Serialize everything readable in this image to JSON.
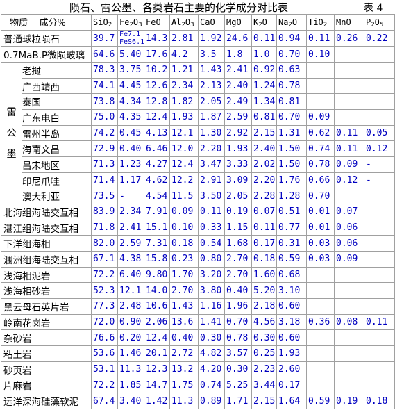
{
  "title": "陨石、雷公墨、各类岩石主要的化学成分对比表",
  "table_no": "表 4",
  "header": {
    "corner_left": "物质",
    "corner_right": "成分%",
    "columns": [
      {
        "base": "SiO",
        "sub": "2",
        "tail": ""
      },
      {
        "base": "Fe",
        "sub": "2",
        "tail": "O",
        "sub2": "3"
      },
      {
        "base": "FeO",
        "sub": "",
        "tail": ""
      },
      {
        "base": "Al",
        "sub": "2",
        "tail": "O",
        "sub2": "3"
      },
      {
        "base": "CaO",
        "sub": "",
        "tail": ""
      },
      {
        "base": "MgO",
        "sub": "",
        "tail": ""
      },
      {
        "base": "K",
        "sub": "2",
        "tail": "O"
      },
      {
        "base": "Na",
        "sub": "2",
        "tail": "O"
      },
      {
        "base": "TiO",
        "sub": "2",
        "tail": ""
      },
      {
        "base": "MnO",
        "sub": "",
        "tail": ""
      },
      {
        "base": "P",
        "sub": "2",
        "tail": "O",
        "sub2": "5"
      }
    ]
  },
  "meteorites": [
    {
      "name": "普通球粒陨石",
      "values": [
        "39.7",
        "",
        "14.3",
        "2.81",
        "1.92",
        "24.6",
        "0.11",
        "0.94",
        "0.11",
        "0.26",
        "0.22"
      ],
      "fe_split": [
        "Fe7.1",
        "FeS6.1"
      ]
    },
    {
      "name": "0.7MaB.P微陨玻璃",
      "values": [
        "64.6",
        "5.40",
        "17.6",
        "4.2",
        "3.5",
        "1.8",
        "1.0",
        "0.70",
        "0.10",
        "",
        ""
      ]
    }
  ],
  "leigongmo": {
    "group_chars": [
      "雷",
      "公",
      "墨"
    ],
    "rows": [
      {
        "name": "老挝",
        "values": [
          "78.3",
          "3.75",
          "10.2",
          "1.21",
          "1.43",
          "2.41",
          "0.92",
          "0.63",
          "",
          "",
          ""
        ]
      },
      {
        "name": "广西靖西",
        "values": [
          "74.1",
          "4.45",
          "12.6",
          "2.34",
          "2.13",
          "2.40",
          "1.24",
          "0.78",
          "",
          "",
          ""
        ]
      },
      {
        "name": "泰国",
        "values": [
          "73.8",
          "4.34",
          "12.8",
          "1.82",
          "2.05",
          "2.49",
          "1.34",
          "0.81",
          "",
          "",
          ""
        ]
      },
      {
        "name": "广东电白",
        "values": [
          "75.0",
          "4.35",
          "12.4",
          "1.93",
          "1.87",
          "2.59",
          "0.81",
          "0.70",
          "0.09",
          "",
          ""
        ]
      },
      {
        "name": "雷州半岛",
        "values": [
          "74.2",
          "0.45",
          "4.13",
          "12.1",
          "1.30",
          "2.92",
          "2.15",
          "1.31",
          "0.62",
          "0.11",
          "0.05"
        ]
      },
      {
        "name": "海南文昌",
        "values": [
          "72.9",
          "0.40",
          "6.46",
          "12.0",
          "2.20",
          "1.93",
          "2.40",
          "1.50",
          "0.74",
          "0.11",
          "0.12"
        ]
      },
      {
        "name": "吕宋地区",
        "values": [
          "71.3",
          "1.23",
          "4.27",
          "12.4",
          "3.47",
          "3.33",
          "2.02",
          "1.50",
          "0.78",
          "0.09",
          "-"
        ]
      },
      {
        "name": "印尼爪哇",
        "values": [
          "71.4",
          "1.17",
          "4.62",
          "12.2",
          "2.91",
          "3.09",
          "2.20",
          "1.76",
          "0.66",
          "0.12",
          "-"
        ]
      },
      {
        "name": "澳大利亚",
        "values": [
          "73.5",
          "-",
          "4.54",
          "11.5",
          "3.50",
          "2.05",
          "2.28",
          "1.28",
          "0.70",
          "",
          ""
        ]
      }
    ]
  },
  "rocks": [
    {
      "name": "北海组海陆交互相",
      "values": [
        "83.9",
        "2.34",
        "7.91",
        "0.09",
        "0.11",
        "0.19",
        "0.07",
        "0.51",
        "0.01",
        "0.07",
        ""
      ]
    },
    {
      "name": "湛江组海陆交互相",
      "values": [
        "71.8",
        "2.41",
        "15.1",
        "0.10",
        "0.33",
        "1.15",
        "0.11",
        "0.77",
        "0.01",
        "0.06",
        ""
      ]
    },
    {
      "name": "下洋组海相",
      "values": [
        "82.0",
        "2.59",
        "7.31",
        "0.18",
        "0.54",
        "1.68",
        "0.17",
        "0.31",
        "0.03",
        "0.06",
        ""
      ]
    },
    {
      "name": "涠洲组海陆交互相",
      "values": [
        "67.1",
        "4.38",
        "15.8",
        "0.23",
        "0.80",
        "2.70",
        "0.18",
        "0.59",
        "0.03",
        "0.09",
        ""
      ]
    },
    {
      "name": "浅海相泥岩",
      "values": [
        "72.2",
        "6.40",
        "9.80",
        "1.70",
        "3.20",
        "2.70",
        "1.60",
        "0.68",
        "",
        "",
        ""
      ]
    },
    {
      "name": "浅海相砂岩",
      "values": [
        "52.3",
        "12.1",
        "14.0",
        "2.70",
        "3.80",
        "0.40",
        "5.20",
        "3.10",
        "",
        "",
        ""
      ]
    },
    {
      "name": "黑云母石英片岩",
      "values": [
        "77.3",
        "2.48",
        "10.6",
        "1.43",
        "1.16",
        "1.96",
        "2.18",
        "0.60",
        "",
        "",
        ""
      ]
    },
    {
      "name": "岭南花岗岩",
      "values": [
        "72.0",
        "0.90",
        "2.06",
        "13.6",
        "1.41",
        "0.70",
        "4.56",
        "3.18",
        "0.36",
        "0.08",
        "0.11"
      ]
    },
    {
      "name": "杂砂岩",
      "values": [
        "76.6",
        "0.20",
        "12.4",
        "0.40",
        "0.30",
        "0.78",
        "0.30",
        "0.60",
        "",
        "",
        ""
      ]
    },
    {
      "name": "粘土岩",
      "values": [
        "53.6",
        "1.46",
        "20.1",
        "2.72",
        "4.82",
        "3.57",
        "0.25",
        "1.93",
        "",
        "",
        ""
      ]
    },
    {
      "name": "砂页岩",
      "values": [
        "53.1",
        "11.3",
        "12.3",
        "13.2",
        "4.20",
        "0.30",
        "2.23",
        "2.60",
        "",
        "",
        ""
      ]
    },
    {
      "name": "片麻岩",
      "values": [
        "72.2",
        "1.85",
        "14.7",
        "1.75",
        "0.74",
        "5.25",
        "3.44",
        "0.17",
        "",
        "",
        ""
      ]
    },
    {
      "name": "远洋深海硅藻软泥",
      "values": [
        "67.4",
        "3.40",
        "1.42",
        "11.3",
        "0.89",
        "1.71",
        "2.15",
        "1.64",
        "0.59",
        "0.19",
        "0.18"
      ]
    }
  ]
}
